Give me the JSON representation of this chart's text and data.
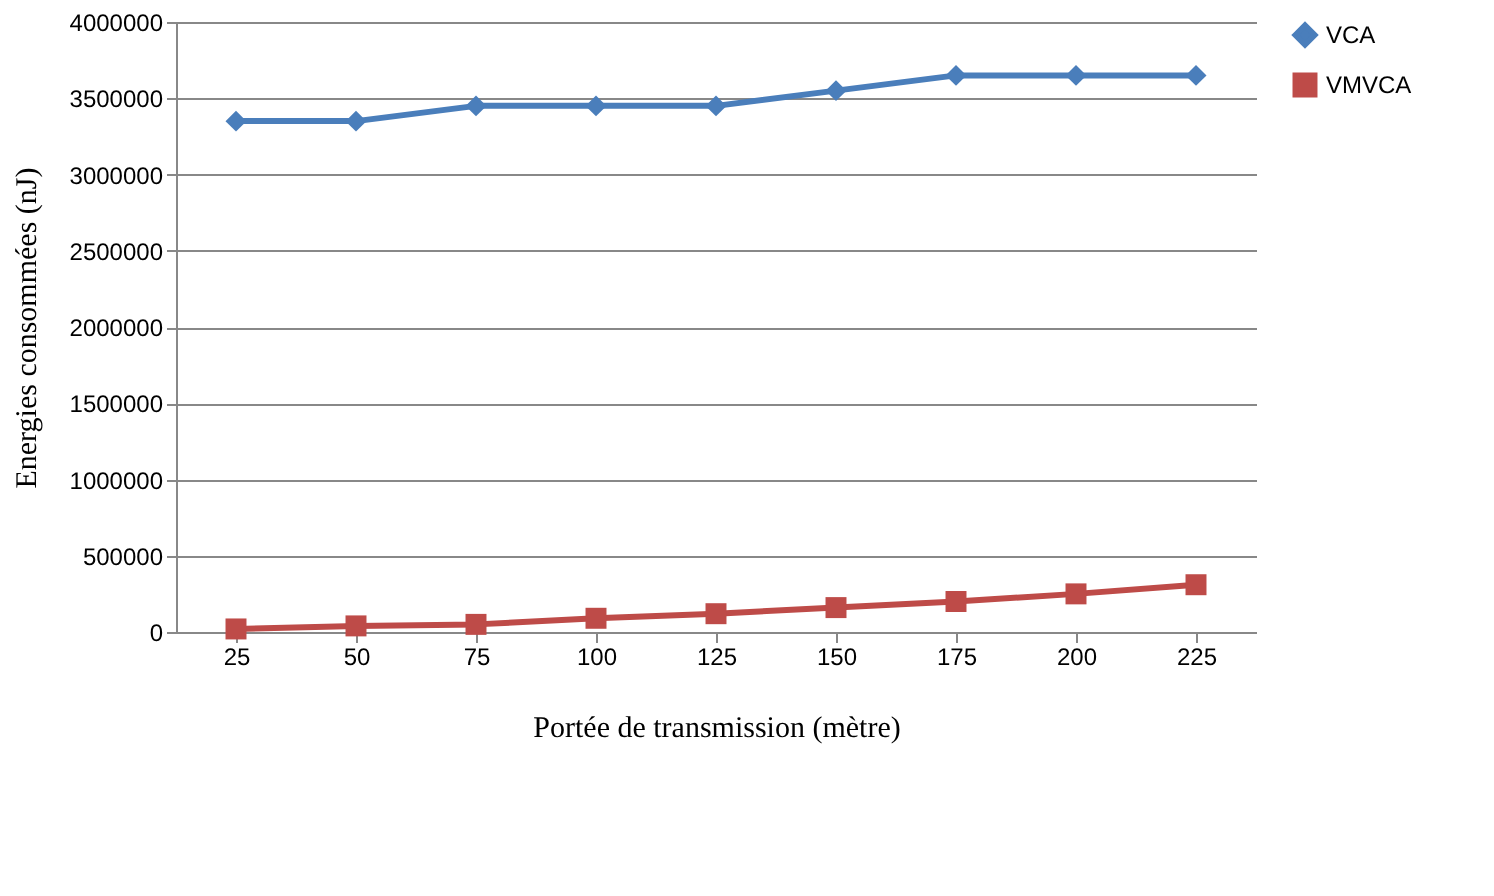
{
  "chart_data": {
    "type": "line",
    "xlabel": "Portée de transmission  (mètre)",
    "ylabel": "Energies  consommées  (nJ)",
    "categories": [
      "25",
      "50",
      "75",
      "100",
      "125",
      "150",
      "175",
      "200",
      "225"
    ],
    "series": [
      {
        "name": "VCA",
        "color": "#4a7ebb",
        "marker": "diamond",
        "values": [
          3350000,
          3350000,
          3450000,
          3450000,
          3450000,
          3550000,
          3650000,
          3650000,
          3650000
        ]
      },
      {
        "name": "VMVCA",
        "color": "#be4b48",
        "marker": "square",
        "values": [
          20000,
          40000,
          50000,
          90000,
          120000,
          160000,
          200000,
          250000,
          310000
        ]
      }
    ],
    "ylim": [
      0,
      4000000
    ],
    "yticks": [
      0,
      500000,
      1000000,
      1500000,
      2000000,
      2500000,
      3000000,
      3500000,
      4000000
    ],
    "grid": "y",
    "legend": "right",
    "line_style": "solid"
  }
}
